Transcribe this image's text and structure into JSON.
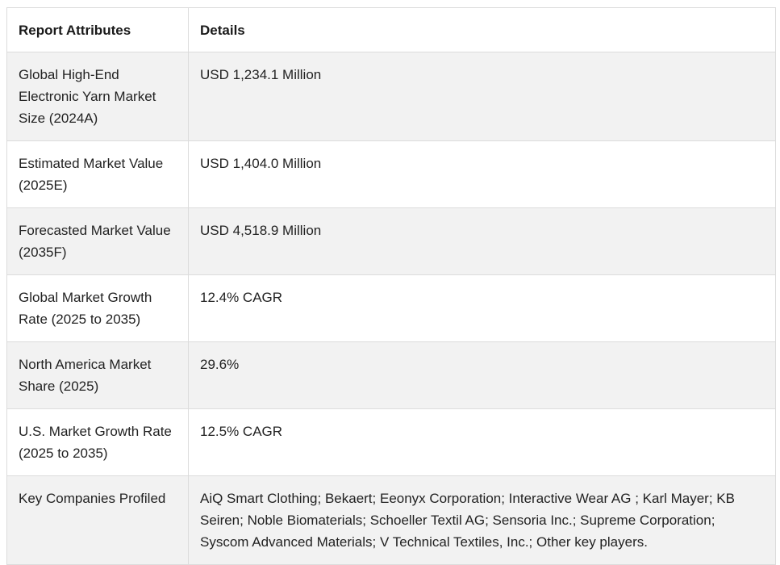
{
  "table": {
    "headers": [
      "Report Attributes",
      "Details"
    ],
    "rows": [
      {
        "attribute": "Global High-End Electronic Yarn Market Size (2024A)",
        "detail": "USD 1,234.1 Million"
      },
      {
        "attribute": "Estimated Market Value (2025E)",
        "detail": "USD 1,404.0 Million"
      },
      {
        "attribute": "Forecasted Market Value (2035F)",
        "detail": "USD 4,518.9 Million"
      },
      {
        "attribute": "Global Market Growth Rate (2025 to 2035)",
        "detail": "12.4% CAGR"
      },
      {
        "attribute": "North America Market Share (2025)",
        "detail": "29.6%"
      },
      {
        "attribute": "U.S. Market Growth Rate (2025 to 2035)",
        "detail": "12.5% CAGR"
      },
      {
        "attribute": "Key Companies Profiled",
        "detail": "AiQ Smart Clothing; Bekaert; Eeonyx Corporation; Interactive Wear AG ; Karl Mayer; KB Seiren; Noble Biomaterials; Schoeller Textil AG; Sensoria Inc.; Supreme Corporation; Syscom Advanced Materials; V Technical Textiles, Inc.; Other key players."
      }
    ]
  },
  "colors": {
    "row_shade": "#f2f2f2",
    "border": "#dcdcdc",
    "text": "#222222"
  }
}
